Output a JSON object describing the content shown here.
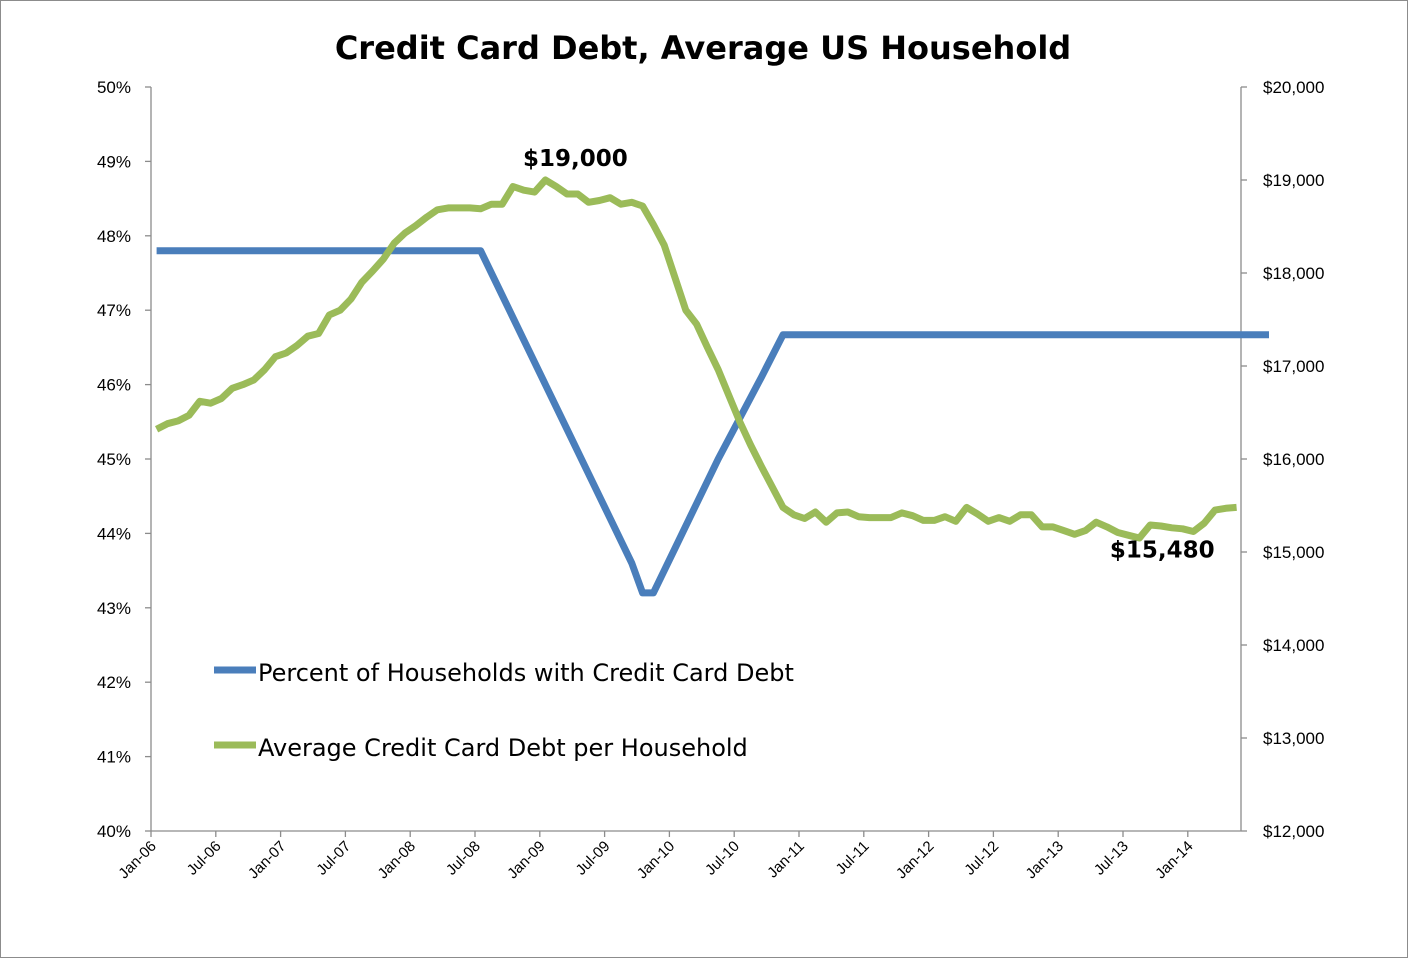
{
  "chart_data": {
    "type": "line",
    "title": "Credit Card Debt, Average US Household",
    "x_axis": {
      "start": "2006-01",
      "end": "2014-08",
      "tick_labels": [
        "Jan-06",
        "Jul-06",
        "Jan-07",
        "Jul-07",
        "Jan-08",
        "Jul-08",
        "Jan-09",
        "Jul-09",
        "Jan-10",
        "Jul-10",
        "Jan-11",
        "Jul-11",
        "Jan-12",
        "Jul-12",
        "Jan-13",
        "Jul-13",
        "Jan-14"
      ]
    },
    "y_left": {
      "min": 40,
      "max": 50,
      "step": 1,
      "tick_labels": [
        "40%",
        "41%",
        "42%",
        "43%",
        "44%",
        "45%",
        "46%",
        "47%",
        "48%",
        "49%",
        "50%"
      ]
    },
    "y_right": {
      "min": 12000,
      "max": 20000,
      "step": 1000,
      "tick_labels": [
        "$12,000",
        "$13,000",
        "$14,000",
        "$15,000",
        "$16,000",
        "$17,000",
        "$18,000",
        "$19,000",
        "$20,000"
      ]
    },
    "grid": false,
    "legend_position": "bottom-left",
    "series": [
      {
        "name": "Percent of Households with Credit Card Debt",
        "axis": "left",
        "color": "#4a7ebb",
        "points": [
          {
            "x": "2006-01",
            "y": 47.8
          },
          {
            "x": "2008-07",
            "y": 47.8
          },
          {
            "x": "2008-09",
            "y": 47.2
          },
          {
            "x": "2008-11",
            "y": 46.6
          },
          {
            "x": "2009-01",
            "y": 46.0
          },
          {
            "x": "2009-03",
            "y": 45.4
          },
          {
            "x": "2009-05",
            "y": 44.8
          },
          {
            "x": "2009-07",
            "y": 44.2
          },
          {
            "x": "2009-09",
            "y": 43.6
          },
          {
            "x": "2009-10",
            "y": 43.2
          },
          {
            "x": "2009-11",
            "y": 43.2
          },
          {
            "x": "2010-01",
            "y": 43.8
          },
          {
            "x": "2010-03",
            "y": 44.4
          },
          {
            "x": "2010-05",
            "y": 45.0
          },
          {
            "x": "2010-07",
            "y": 45.55
          },
          {
            "x": "2010-09",
            "y": 46.1
          },
          {
            "x": "2010-11",
            "y": 46.67
          },
          {
            "x": "2014-08",
            "y": 46.67
          }
        ]
      },
      {
        "name": "Average Credit Card Debt per Household",
        "axis": "right",
        "color": "#9bbb59",
        "points": [
          {
            "x": "2006-01",
            "y": 16320
          },
          {
            "x": "2006-02",
            "y": 16380
          },
          {
            "x": "2006-03",
            "y": 16410
          },
          {
            "x": "2006-04",
            "y": 16470
          },
          {
            "x": "2006-05",
            "y": 16620
          },
          {
            "x": "2006-06",
            "y": 16600
          },
          {
            "x": "2006-07",
            "y": 16650
          },
          {
            "x": "2006-08",
            "y": 16760
          },
          {
            "x": "2006-09",
            "y": 16800
          },
          {
            "x": "2006-10",
            "y": 16850
          },
          {
            "x": "2006-11",
            "y": 16960
          },
          {
            "x": "2006-12",
            "y": 17100
          },
          {
            "x": "2007-01",
            "y": 17140
          },
          {
            "x": "2007-02",
            "y": 17220
          },
          {
            "x": "2007-03",
            "y": 17320
          },
          {
            "x": "2007-04",
            "y": 17350
          },
          {
            "x": "2007-05",
            "y": 17550
          },
          {
            "x": "2007-06",
            "y": 17600
          },
          {
            "x": "2007-07",
            "y": 17720
          },
          {
            "x": "2007-08",
            "y": 17900
          },
          {
            "x": "2007-09",
            "y": 18020
          },
          {
            "x": "2007-10",
            "y": 18150
          },
          {
            "x": "2007-11",
            "y": 18320
          },
          {
            "x": "2007-12",
            "y": 18430
          },
          {
            "x": "2008-01",
            "y": 18510
          },
          {
            "x": "2008-02",
            "y": 18600
          },
          {
            "x": "2008-03",
            "y": 18680
          },
          {
            "x": "2008-04",
            "y": 18700
          },
          {
            "x": "2008-05",
            "y": 18700
          },
          {
            "x": "2008-06",
            "y": 18700
          },
          {
            "x": "2008-07",
            "y": 18690
          },
          {
            "x": "2008-08",
            "y": 18740
          },
          {
            "x": "2008-09",
            "y": 18740
          },
          {
            "x": "2008-10",
            "y": 18930
          },
          {
            "x": "2008-11",
            "y": 18890
          },
          {
            "x": "2008-12",
            "y": 18870
          },
          {
            "x": "2009-01",
            "y": 19000
          },
          {
            "x": "2009-02",
            "y": 18930
          },
          {
            "x": "2009-03",
            "y": 18850
          },
          {
            "x": "2009-04",
            "y": 18850
          },
          {
            "x": "2009-05",
            "y": 18760
          },
          {
            "x": "2009-06",
            "y": 18780
          },
          {
            "x": "2009-07",
            "y": 18810
          },
          {
            "x": "2009-08",
            "y": 18740
          },
          {
            "x": "2009-09",
            "y": 18760
          },
          {
            "x": "2009-10",
            "y": 18720
          },
          {
            "x": "2009-11",
            "y": 18520
          },
          {
            "x": "2009-12",
            "y": 18300
          },
          {
            "x": "2010-01",
            "y": 17950
          },
          {
            "x": "2010-02",
            "y": 17600
          },
          {
            "x": "2010-03",
            "y": 17450
          },
          {
            "x": "2010-04",
            "y": 17200
          },
          {
            "x": "2010-05",
            "y": 16960
          },
          {
            "x": "2010-06",
            "y": 16680
          },
          {
            "x": "2010-07",
            "y": 16400
          },
          {
            "x": "2010-08",
            "y": 16150
          },
          {
            "x": "2010-09",
            "y": 15920
          },
          {
            "x": "2010-10",
            "y": 15700
          },
          {
            "x": "2010-11",
            "y": 15480
          },
          {
            "x": "2010-12",
            "y": 15400
          },
          {
            "x": "2011-01",
            "y": 15360
          },
          {
            "x": "2011-02",
            "y": 15430
          },
          {
            "x": "2011-03",
            "y": 15320
          },
          {
            "x": "2011-04",
            "y": 15420
          },
          {
            "x": "2011-05",
            "y": 15430
          },
          {
            "x": "2011-06",
            "y": 15380
          },
          {
            "x": "2011-07",
            "y": 15370
          },
          {
            "x": "2011-08",
            "y": 15370
          },
          {
            "x": "2011-09",
            "y": 15370
          },
          {
            "x": "2011-10",
            "y": 15420
          },
          {
            "x": "2011-11",
            "y": 15390
          },
          {
            "x": "2011-12",
            "y": 15340
          },
          {
            "x": "2012-01",
            "y": 15340
          },
          {
            "x": "2012-02",
            "y": 15380
          },
          {
            "x": "2012-03",
            "y": 15330
          },
          {
            "x": "2012-04",
            "y": 15480
          },
          {
            "x": "2012-05",
            "y": 15410
          },
          {
            "x": "2012-06",
            "y": 15330
          },
          {
            "x": "2012-07",
            "y": 15370
          },
          {
            "x": "2012-08",
            "y": 15330
          },
          {
            "x": "2012-09",
            "y": 15400
          },
          {
            "x": "2012-10",
            "y": 15400
          },
          {
            "x": "2012-11",
            "y": 15270
          },
          {
            "x": "2012-12",
            "y": 15270
          },
          {
            "x": "2013-01",
            "y": 15230
          },
          {
            "x": "2013-02",
            "y": 15190
          },
          {
            "x": "2013-03",
            "y": 15230
          },
          {
            "x": "2013-04",
            "y": 15320
          },
          {
            "x": "2013-05",
            "y": 15270
          },
          {
            "x": "2013-06",
            "y": 15210
          },
          {
            "x": "2013-07",
            "y": 15180
          },
          {
            "x": "2013-08",
            "y": 15150
          },
          {
            "x": "2013-09",
            "y": 15290
          },
          {
            "x": "2013-10",
            "y": 15280
          },
          {
            "x": "2013-11",
            "y": 15260
          },
          {
            "x": "2013-12",
            "y": 15250
          },
          {
            "x": "2014-01",
            "y": 15220
          },
          {
            "x": "2014-02",
            "y": 15310
          },
          {
            "x": "2014-03",
            "y": 15450
          },
          {
            "x": "2014-04",
            "y": 15470
          },
          {
            "x": "2014-05",
            "y": 15480
          }
        ]
      }
    ],
    "annotations": [
      {
        "text": "$19,000",
        "x": "2009-01",
        "y": 19000,
        "axis": "right",
        "placement": "above"
      },
      {
        "text": "$15,480",
        "x": "2014-05",
        "y": 15480,
        "axis": "right",
        "placement": "below-left"
      }
    ]
  }
}
